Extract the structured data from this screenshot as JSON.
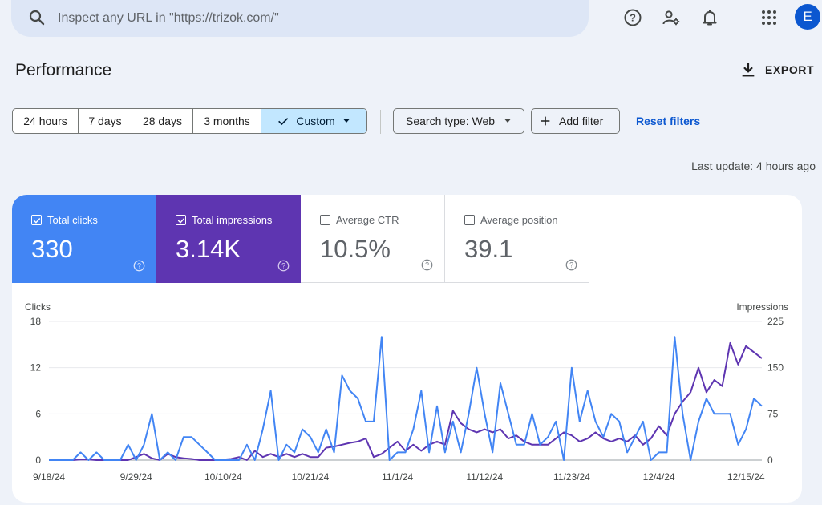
{
  "search": {
    "placeholder": "Inspect any URL in \"https://trizok.com/\""
  },
  "topbar": {
    "icons": [
      "help-icon",
      "admin-settings-icon",
      "notifications-icon",
      "apps-grid-icon"
    ],
    "avatar_letter": "E",
    "avatar_color": "#0b57d0"
  },
  "page": {
    "title": "Performance",
    "export_label": "EXPORT",
    "last_update": "Last update: 4 hours ago"
  },
  "filters": {
    "ranges": [
      "24 hours",
      "7 days",
      "28 days",
      "3 months",
      "Custom"
    ],
    "selected_range": "Custom",
    "search_type": "Search type: Web",
    "add_filter": "Add filter",
    "reset": "Reset filters"
  },
  "metrics": [
    {
      "label": "Total clicks",
      "value": "330",
      "checked": true,
      "color": "#4285f4"
    },
    {
      "label": "Total impressions",
      "value": "3.14K",
      "checked": true,
      "color": "#5e35b1"
    },
    {
      "label": "Average CTR",
      "value": "10.5%",
      "checked": false,
      "color": "#ffffff"
    },
    {
      "label": "Average position",
      "value": "39.1",
      "checked": false,
      "color": "#ffffff"
    }
  ],
  "chart_data": {
    "type": "line",
    "ylabel_left": "Clicks",
    "ylabel_right": "Impressions",
    "ylim_left": [
      0,
      18
    ],
    "ylim_right": [
      0,
      225
    ],
    "yticks_left": [
      "0",
      "6",
      "12",
      "18"
    ],
    "yticks_right": [
      "0",
      "75",
      "150",
      "225"
    ],
    "x_tick_labels": [
      "9/18/24",
      "9/29/24",
      "10/10/24",
      "10/21/24",
      "11/1/24",
      "11/12/24",
      "11/23/24",
      "12/4/24",
      "12/15/24"
    ],
    "x_tick_index": [
      0,
      11,
      22,
      33,
      44,
      55,
      66,
      77,
      88
    ],
    "grid": true,
    "series": [
      {
        "name": "Clicks",
        "color": "#4285f4",
        "axis": "left",
        "values": [
          0,
          0,
          0,
          0,
          1,
          0,
          1,
          0,
          0,
          0,
          2,
          0,
          2,
          6,
          0,
          1,
          0,
          3,
          3,
          2,
          1,
          0,
          0,
          0,
          0,
          2,
          0,
          4,
          9,
          0,
          2,
          1,
          4,
          3,
          1,
          4,
          1,
          11,
          9,
          8,
          5,
          5,
          16,
          0,
          1,
          1,
          4,
          9,
          1,
          7,
          1,
          5,
          1,
          6,
          12,
          6,
          1,
          10,
          6,
          2,
          2,
          6,
          2,
          3,
          5,
          0,
          12,
          5,
          9,
          5,
          3,
          6,
          5,
          1,
          3,
          5,
          0,
          1,
          1,
          16,
          6,
          0,
          5,
          8,
          6,
          6,
          6,
          2,
          4,
          8,
          7
        ]
      },
      {
        "name": "Impressions",
        "color": "#5e35b1",
        "axis": "right",
        "values": [
          0,
          0,
          0,
          0,
          1,
          1,
          0,
          0,
          0,
          0,
          0,
          5,
          10,
          3,
          0,
          10,
          5,
          3,
          2,
          0,
          0,
          0,
          1,
          2,
          5,
          0,
          15,
          5,
          10,
          5,
          10,
          5,
          10,
          5,
          5,
          20,
          22,
          25,
          28,
          30,
          35,
          5,
          10,
          20,
          30,
          15,
          25,
          15,
          25,
          30,
          25,
          80,
          60,
          50,
          45,
          50,
          45,
          50,
          35,
          40,
          30,
          25,
          25,
          25,
          35,
          45,
          40,
          30,
          35,
          45,
          35,
          30,
          35,
          30,
          40,
          25,
          35,
          55,
          40,
          75,
          95,
          110,
          150,
          110,
          130,
          120,
          190,
          155,
          185,
          175,
          165
        ]
      }
    ]
  }
}
